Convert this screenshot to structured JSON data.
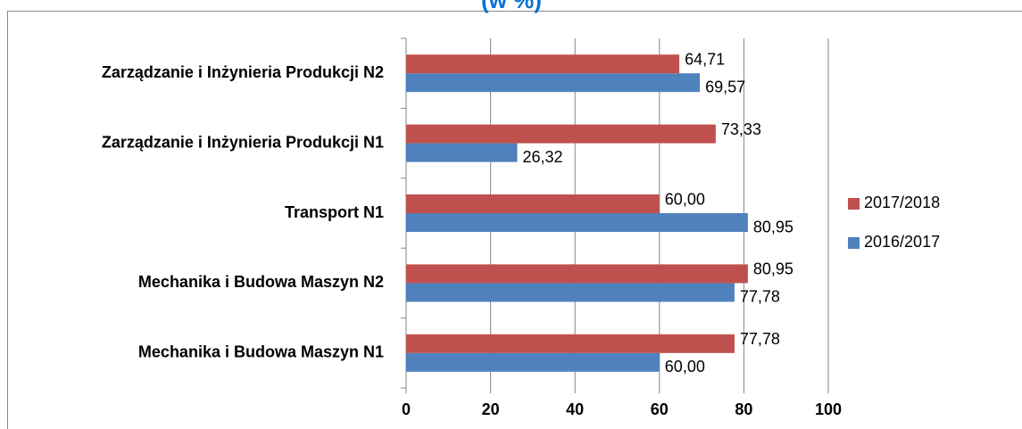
{
  "chart_data": {
    "type": "hbar",
    "title": "(w %)",
    "categories": [
      "Mechanika i Budowa Maszyn N1",
      "Mechanika i Budowa Maszyn N2",
      "Transport N1",
      "Zarządzanie i Inżynieria Produkcji N1",
      "Zarządzanie i Inżynieria Produkcji N2"
    ],
    "series": [
      {
        "name": "2016/2017",
        "color": "#4f81bd",
        "values": [
          60.0,
          77.78,
          80.95,
          26.32,
          69.57
        ],
        "value_labels": [
          "60,00",
          "77,78",
          "80,95",
          "26,32",
          "69,57"
        ]
      },
      {
        "name": "2017/2018",
        "color": "#c0504d",
        "values": [
          77.78,
          80.95,
          60.0,
          73.33,
          64.71
        ],
        "value_labels": [
          "77,78",
          "80,95",
          "60,00",
          "73,33",
          "64,71"
        ]
      }
    ],
    "xlim": [
      0,
      100
    ],
    "xticks": [
      0,
      20,
      40,
      60,
      80,
      100
    ],
    "grid": true,
    "legend": "right"
  }
}
